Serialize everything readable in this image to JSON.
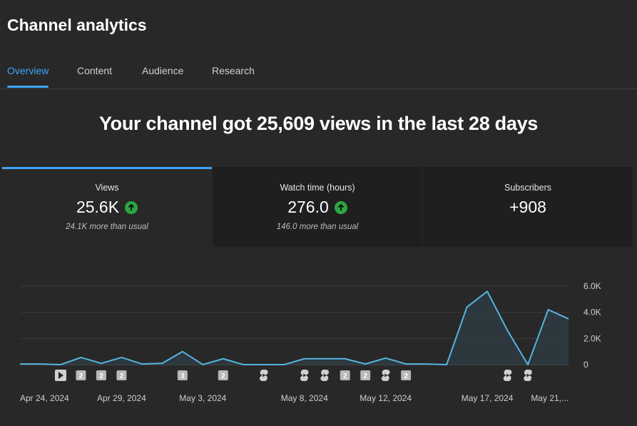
{
  "app": {
    "title": "Channel analytics"
  },
  "tabs": [
    {
      "label": "Overview",
      "active": true
    },
    {
      "label": "Content",
      "active": false
    },
    {
      "label": "Audience",
      "active": false
    },
    {
      "label": "Research",
      "active": false
    }
  ],
  "headline": "Your channel got 25,609 views in the last 28 days",
  "cards": [
    {
      "label": "Views",
      "value": "25.6K",
      "trend": "up",
      "note": "24.1K more than usual",
      "selected": true
    },
    {
      "label": "Watch time (hours)",
      "value": "276.0",
      "trend": "up",
      "note": "146.0 more than usual",
      "selected": false
    },
    {
      "label": "Subscribers",
      "value": "+908",
      "trend": "none",
      "note": "",
      "selected": false
    }
  ],
  "colors": {
    "accent": "#3ea6ff",
    "positive": "#2ba640",
    "background": "#282828",
    "card": "#1f1f1f"
  },
  "chart_data": {
    "type": "area",
    "x": [
      "Apr 24",
      "Apr 25",
      "Apr 26",
      "Apr 27",
      "Apr 28",
      "Apr 29",
      "Apr 30",
      "May 1",
      "May 2",
      "May 3",
      "May 4",
      "May 5",
      "May 6",
      "May 7",
      "May 8",
      "May 9",
      "May 10",
      "May 11",
      "May 12",
      "May 13",
      "May 14",
      "May 15",
      "May 16",
      "May 17",
      "May 18",
      "May 19",
      "May 20",
      "May 21"
    ],
    "values": [
      50,
      50,
      0,
      550,
      100,
      550,
      50,
      100,
      1000,
      0,
      450,
      0,
      0,
      0,
      450,
      450,
      450,
      50,
      500,
      50,
      50,
      0,
      4400,
      5600,
      2600,
      0,
      4200,
      3500
    ],
    "x_tick_labels": [
      "Apr 24, 2024",
      "Apr 29, 2024",
      "May 3, 2024",
      "May 8, 2024",
      "May 12, 2024",
      "May 17, 2024",
      "May 21,..."
    ],
    "x_tick_indices": [
      0,
      5,
      9,
      14,
      18,
      23,
      27
    ],
    "y_tick_labels": [
      "0",
      "2.0K",
      "4.0K",
      "6.0K"
    ],
    "y_ticks": [
      0,
      2000,
      4000,
      6000
    ],
    "ylim": [
      0,
      6000
    ],
    "grid": true,
    "line_color": "#56b4e0",
    "markers": [
      {
        "index": 2,
        "kind": "play"
      },
      {
        "index": 3,
        "kind": "count",
        "label": "2"
      },
      {
        "index": 4,
        "kind": "count",
        "label": "2"
      },
      {
        "index": 5,
        "kind": "count",
        "label": "2"
      },
      {
        "index": 8,
        "kind": "count",
        "label": "3"
      },
      {
        "index": 10,
        "kind": "count",
        "label": "2"
      },
      {
        "index": 12,
        "kind": "shorts"
      },
      {
        "index": 14,
        "kind": "shorts"
      },
      {
        "index": 15,
        "kind": "shorts"
      },
      {
        "index": 16,
        "kind": "count",
        "label": "2"
      },
      {
        "index": 17,
        "kind": "count",
        "label": "2"
      },
      {
        "index": 18,
        "kind": "shorts"
      },
      {
        "index": 19,
        "kind": "count",
        "label": "2"
      },
      {
        "index": 24,
        "kind": "shorts"
      },
      {
        "index": 25,
        "kind": "shorts"
      }
    ]
  }
}
